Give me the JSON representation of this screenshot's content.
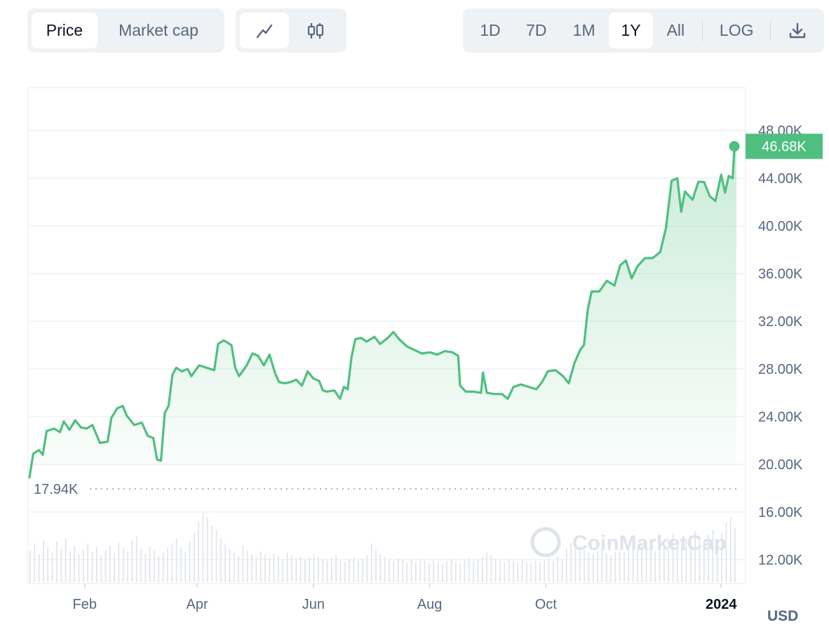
{
  "toolbar": {
    "metric_tabs": [
      {
        "label": "Price",
        "active": true
      },
      {
        "label": "Market cap",
        "active": false
      }
    ],
    "chart_type_buttons": [
      {
        "icon": "line-chart-icon",
        "active": true
      },
      {
        "icon": "candlestick-icon",
        "active": false
      }
    ],
    "ranges": [
      {
        "label": "1D",
        "active": false
      },
      {
        "label": "7D",
        "active": false
      },
      {
        "label": "1M",
        "active": false
      },
      {
        "label": "1Y",
        "active": true
      },
      {
        "label": "All",
        "active": false
      }
    ],
    "log_label": "LOG",
    "download_icon": "download-icon"
  },
  "chart_data": {
    "type": "area",
    "title": "",
    "xlabel": "",
    "ylabel": "",
    "currency": "USD",
    "watermark": "CoinMarketCap",
    "x_tick_labels": [
      "Feb",
      "Apr",
      "Jun",
      "Aug",
      "Oct",
      "2024"
    ],
    "x_range": [
      "2023-01-03",
      "2024-01-09"
    ],
    "y_ticks": [
      "12.00K",
      "16.00K",
      "20.00K",
      "24.00K",
      "28.00K",
      "32.00K",
      "36.00K",
      "40.00K",
      "44.00K",
      "48.00K"
    ],
    "y_tick_values": [
      12000,
      16000,
      20000,
      24000,
      28000,
      32000,
      36000,
      40000,
      44000,
      48000
    ],
    "ylim": [
      10000,
      51600
    ],
    "last_price": 46680,
    "last_price_label": "46.68K",
    "min_price": 17940,
    "min_price_label": "17.94K",
    "line_color": "#4fbf7f",
    "grid": true,
    "series": [
      {
        "name": "",
        "points": [
          [
            "2023-01-03",
            18900
          ],
          [
            "2023-01-05",
            20900
          ],
          [
            "2023-01-08",
            21200
          ],
          [
            "2023-01-10",
            20800
          ],
          [
            "2023-01-12",
            22800
          ],
          [
            "2023-01-16",
            23000
          ],
          [
            "2023-01-19",
            22700
          ],
          [
            "2023-01-21",
            23600
          ],
          [
            "2023-01-24",
            22900
          ],
          [
            "2023-01-27",
            23700
          ],
          [
            "2023-01-30",
            23100
          ],
          [
            "2023-02-02",
            23000
          ],
          [
            "2023-02-05",
            23300
          ],
          [
            "2023-02-09",
            21800
          ],
          [
            "2023-02-13",
            21900
          ],
          [
            "2023-02-15",
            23900
          ],
          [
            "2023-02-18",
            24700
          ],
          [
            "2023-02-21",
            24900
          ],
          [
            "2023-02-23",
            24100
          ],
          [
            "2023-02-27",
            23300
          ],
          [
            "2023-03-03",
            23500
          ],
          [
            "2023-03-06",
            22400
          ],
          [
            "2023-03-09",
            22200
          ],
          [
            "2023-03-11",
            20400
          ],
          [
            "2023-03-13",
            20300
          ],
          [
            "2023-03-15",
            24300
          ],
          [
            "2023-03-17",
            24900
          ],
          [
            "2023-03-19",
            27500
          ],
          [
            "2023-03-21",
            28100
          ],
          [
            "2023-03-24",
            27800
          ],
          [
            "2023-03-27",
            28000
          ],
          [
            "2023-03-29",
            27400
          ],
          [
            "2023-04-02",
            28300
          ],
          [
            "2023-04-06",
            28100
          ],
          [
            "2023-04-10",
            27900
          ],
          [
            "2023-04-12",
            30100
          ],
          [
            "2023-04-15",
            30400
          ],
          [
            "2023-04-19",
            30000
          ],
          [
            "2023-04-21",
            28100
          ],
          [
            "2023-04-23",
            27400
          ],
          [
            "2023-04-27",
            28300
          ],
          [
            "2023-04-30",
            29300
          ],
          [
            "2023-05-03",
            29100
          ],
          [
            "2023-05-06",
            28300
          ],
          [
            "2023-05-09",
            29200
          ],
          [
            "2023-05-12",
            27600
          ],
          [
            "2023-05-14",
            26900
          ],
          [
            "2023-05-17",
            26800
          ],
          [
            "2023-05-20",
            26900
          ],
          [
            "2023-05-23",
            27100
          ],
          [
            "2023-05-26",
            26600
          ],
          [
            "2023-05-29",
            27800
          ],
          [
            "2023-06-01",
            27200
          ],
          [
            "2023-06-04",
            27000
          ],
          [
            "2023-06-06",
            26200
          ],
          [
            "2023-06-08",
            26100
          ],
          [
            "2023-06-12",
            26200
          ],
          [
            "2023-06-15",
            25500
          ],
          [
            "2023-06-17",
            26500
          ],
          [
            "2023-06-19",
            26300
          ],
          [
            "2023-06-21",
            29000
          ],
          [
            "2023-06-23",
            30500
          ],
          [
            "2023-06-26",
            30600
          ],
          [
            "2023-06-29",
            30300
          ],
          [
            "2023-07-03",
            30700
          ],
          [
            "2023-07-06",
            30100
          ],
          [
            "2023-07-10",
            30600
          ],
          [
            "2023-07-13",
            31100
          ],
          [
            "2023-07-16",
            30500
          ],
          [
            "2023-07-20",
            29900
          ],
          [
            "2023-07-24",
            29600
          ],
          [
            "2023-07-28",
            29300
          ],
          [
            "2023-08-01",
            29400
          ],
          [
            "2023-08-05",
            29200
          ],
          [
            "2023-08-09",
            29500
          ],
          [
            "2023-08-13",
            29400
          ],
          [
            "2023-08-16",
            29100
          ],
          [
            "2023-08-17",
            26600
          ],
          [
            "2023-08-20",
            26100
          ],
          [
            "2023-08-24",
            26100
          ],
          [
            "2023-08-28",
            26000
          ],
          [
            "2023-08-29",
            27700
          ],
          [
            "2023-08-31",
            26000
          ],
          [
            "2023-09-04",
            25900
          ],
          [
            "2023-09-08",
            25900
          ],
          [
            "2023-09-11",
            25500
          ],
          [
            "2023-09-14",
            26500
          ],
          [
            "2023-09-18",
            26700
          ],
          [
            "2023-09-22",
            26500
          ],
          [
            "2023-09-26",
            26300
          ],
          [
            "2023-09-29",
            26900
          ],
          [
            "2023-10-02",
            27800
          ],
          [
            "2023-10-06",
            27900
          ],
          [
            "2023-10-10",
            27400
          ],
          [
            "2023-10-13",
            26800
          ],
          [
            "2023-10-16",
            28500
          ],
          [
            "2023-10-19",
            29600
          ],
          [
            "2023-10-21",
            30000
          ],
          [
            "2023-10-23",
            33000
          ],
          [
            "2023-10-25",
            34500
          ],
          [
            "2023-10-29",
            34500
          ],
          [
            "2023-11-02",
            35400
          ],
          [
            "2023-11-06",
            35000
          ],
          [
            "2023-11-09",
            36700
          ],
          [
            "2023-11-12",
            37100
          ],
          [
            "2023-11-15",
            35600
          ],
          [
            "2023-11-18",
            36600
          ],
          [
            "2023-11-22",
            37300
          ],
          [
            "2023-11-26",
            37300
          ],
          [
            "2023-11-30",
            37800
          ],
          [
            "2023-12-03",
            39800
          ],
          [
            "2023-12-06",
            43800
          ],
          [
            "2023-12-09",
            44000
          ],
          [
            "2023-12-11",
            41200
          ],
          [
            "2023-12-13",
            42900
          ],
          [
            "2023-12-17",
            42200
          ],
          [
            "2023-12-20",
            43700
          ],
          [
            "2023-12-23",
            43700
          ],
          [
            "2023-12-26",
            42500
          ],
          [
            "2023-12-29",
            42100
          ],
          [
            "2024-01-01",
            44300
          ],
          [
            "2024-01-03",
            42800
          ],
          [
            "2024-01-05",
            44200
          ],
          [
            "2024-01-07",
            44000
          ],
          [
            "2024-01-08",
            46800
          ],
          [
            "2024-01-09",
            46680
          ]
        ]
      }
    ],
    "volume": [
      0.45,
      0.55,
      0.4,
      0.6,
      0.5,
      0.42,
      0.58,
      0.48,
      0.62,
      0.44,
      0.52,
      0.4,
      0.47,
      0.55,
      0.43,
      0.5,
      0.38,
      0.46,
      0.52,
      0.41,
      0.57,
      0.49,
      0.44,
      0.6,
      0.66,
      0.48,
      0.4,
      0.51,
      0.45,
      0.37,
      0.42,
      0.48,
      0.55,
      0.62,
      0.5,
      0.44,
      0.58,
      0.7,
      0.86,
      1.0,
      0.92,
      0.8,
      0.74,
      0.62,
      0.55,
      0.48,
      0.42,
      0.38,
      0.52,
      0.45,
      0.4,
      0.36,
      0.44,
      0.39,
      0.35,
      0.41,
      0.37,
      0.33,
      0.42,
      0.38,
      0.34,
      0.36,
      0.32,
      0.35,
      0.4,
      0.36,
      0.33,
      0.3,
      0.34,
      0.38,
      0.31,
      0.29,
      0.33,
      0.36,
      0.3,
      0.34,
      0.38,
      0.55,
      0.46,
      0.4,
      0.36,
      0.33,
      0.3,
      0.34,
      0.31,
      0.28,
      0.32,
      0.29,
      0.33,
      0.3,
      0.27,
      0.31,
      0.29,
      0.26,
      0.3,
      0.33,
      0.29,
      0.27,
      0.31,
      0.34,
      0.3,
      0.32,
      0.36,
      0.42,
      0.38,
      0.34,
      0.31,
      0.29,
      0.33,
      0.3,
      0.28,
      0.32,
      0.29,
      0.27,
      0.3,
      0.28,
      0.31,
      0.34,
      0.3,
      0.36,
      0.33,
      0.48,
      0.56,
      0.6,
      0.52,
      0.46,
      0.42,
      0.4,
      0.44,
      0.48,
      0.41,
      0.38,
      0.43,
      0.46,
      0.42,
      0.5,
      0.54,
      0.47,
      0.52,
      0.58,
      0.49,
      0.44,
      0.5,
      0.55,
      0.62,
      0.7,
      0.58,
      0.52,
      0.6,
      0.66,
      0.72,
      0.64,
      0.58,
      0.68,
      0.75,
      0.62,
      0.7,
      0.85,
      0.92,
      0.78
    ]
  }
}
